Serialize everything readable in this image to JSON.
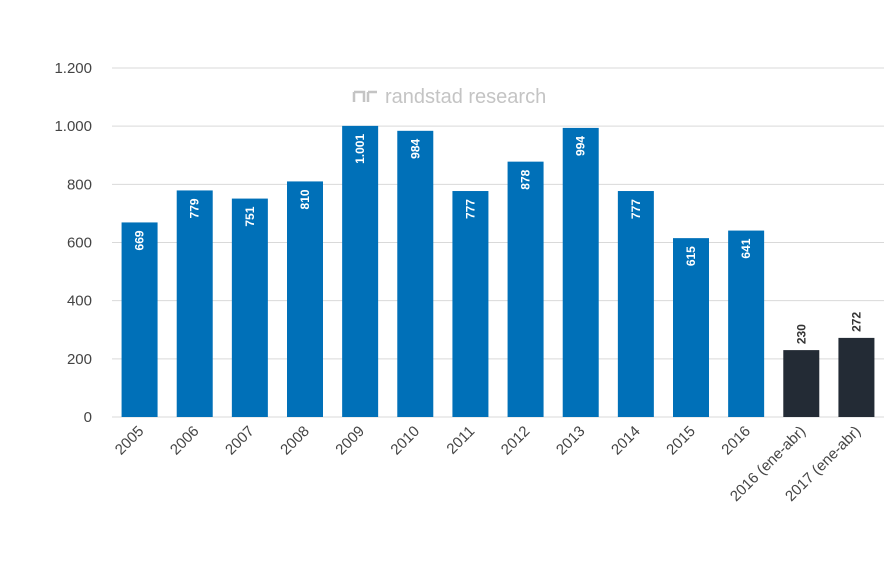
{
  "watermark": "randstad research",
  "chart_data": {
    "type": "bar",
    "categories": [
      "2005",
      "2006",
      "2007",
      "2008",
      "2009",
      "2010",
      "2011",
      "2012",
      "2013",
      "2014",
      "2015",
      "2016",
      "2016 (ene-abr)",
      "2017 (ene-abr)"
    ],
    "values": [
      669,
      779,
      751,
      810,
      1001,
      984,
      777,
      878,
      994,
      777,
      615,
      641,
      230,
      272
    ],
    "value_labels": [
      "669",
      "779",
      "751",
      "810",
      "1.001",
      "984",
      "777",
      "878",
      "994",
      "777",
      "615",
      "641",
      "230",
      "272"
    ],
    "ylim": [
      0,
      1200
    ],
    "yticks": [
      0,
      200,
      400,
      600,
      800,
      1000,
      1200
    ],
    "ytick_labels": [
      "0",
      "200",
      "400",
      "600",
      "800",
      "1.000",
      "1.200"
    ],
    "grid": true,
    "colors": {
      "main": "#0070b8",
      "partial_year": "#232b35",
      "grid": "#d9d9d9"
    },
    "highlight_start_index": 12
  }
}
